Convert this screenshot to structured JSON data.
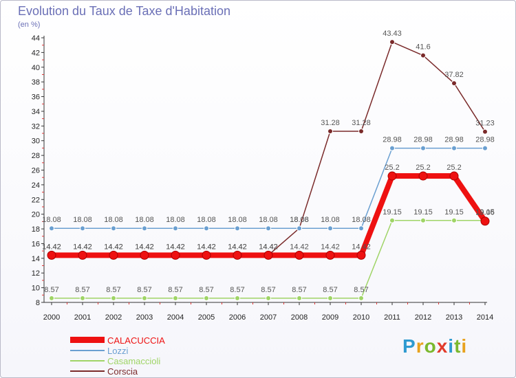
{
  "chart_data": {
    "type": "line",
    "title": "Evolution du Taux de Taxe d'Habitation",
    "subtitle": "(en %)",
    "xlabel": "",
    "ylabel": "",
    "x": [
      "2000",
      "2001",
      "2002",
      "2003",
      "2004",
      "2005",
      "2006",
      "2007",
      "2008",
      "2009",
      "2010",
      "2011",
      "2012",
      "2013",
      "2014"
    ],
    "ylim": [
      8,
      45
    ],
    "yticks": [
      8,
      10,
      12,
      14,
      16,
      18,
      20,
      22,
      24,
      26,
      28,
      30,
      32,
      34,
      36,
      38,
      40,
      42,
      44
    ],
    "grid": false,
    "legend": "bottom-left",
    "series": [
      {
        "name": "CALACUCCIA",
        "color": "#ee1111",
        "values": [
          14.42,
          14.42,
          14.42,
          14.42,
          14.42,
          14.42,
          14.42,
          14.42,
          14.42,
          14.42,
          14.42,
          25.2,
          25.2,
          25.2,
          19.06
        ],
        "labels": [
          "14.42",
          "14.42",
          "14.42",
          "14.42",
          "14.42",
          "14.42",
          "14.42",
          "14.42",
          "14.42",
          "14.42",
          "14.42",
          "25.2",
          "25.2",
          "25.2",
          "19.06"
        ]
      },
      {
        "name": "Lozzi",
        "color": "#6a9fd1",
        "values": [
          18.08,
          18.08,
          18.08,
          18.08,
          18.08,
          18.08,
          18.08,
          18.08,
          18.08,
          18.08,
          18.08,
          28.98,
          28.98,
          28.98,
          28.98
        ],
        "labels": [
          "18.08",
          "18.08",
          "18.08",
          "18.08",
          "18.08",
          "18.08",
          "18.08",
          "18.08",
          "18.08",
          "18.08",
          "18.08",
          "28.98",
          "28.98",
          "28.98",
          "28.98"
        ]
      },
      {
        "name": "Casamaccioli",
        "color": "#9fd466",
        "values": [
          8.57,
          8.57,
          8.57,
          8.57,
          8.57,
          8.57,
          8.57,
          8.57,
          8.57,
          8.57,
          8.57,
          19.15,
          19.15,
          19.15,
          19.15
        ],
        "labels": [
          "8.57",
          "8.57",
          "8.57",
          "8.57",
          "8.57",
          "8.57",
          "8.57",
          "8.57",
          "8.57",
          "8.57",
          "8.57",
          "19.15",
          "19.15",
          "19.15",
          "19.15"
        ]
      },
      {
        "name": "Corscia",
        "color": "#7a2a2a",
        "values": [
          14.42,
          14.42,
          14.42,
          14.42,
          14.42,
          14.42,
          14.42,
          14.42,
          18.08,
          31.28,
          31.28,
          43.43,
          41.6,
          37.82,
          31.23
        ],
        "labels": [
          "14.42",
          "14.42",
          "14.42",
          "14.42",
          "14.42",
          "14.42",
          "14.42",
          "14.42",
          "18.08",
          "31.28",
          "31.28",
          "43.43",
          "41.6",
          "37.82",
          "31.23"
        ]
      }
    ]
  },
  "logo": {
    "letters": [
      "P",
      "r",
      "o",
      "x",
      "i",
      "t",
      "i"
    ],
    "colors": [
      "#2e9ad0",
      "#e8a21e",
      "#7bb82e",
      "#e23b2b",
      "#2e9ad0",
      "#7bb82e",
      "#e8a21e"
    ]
  }
}
